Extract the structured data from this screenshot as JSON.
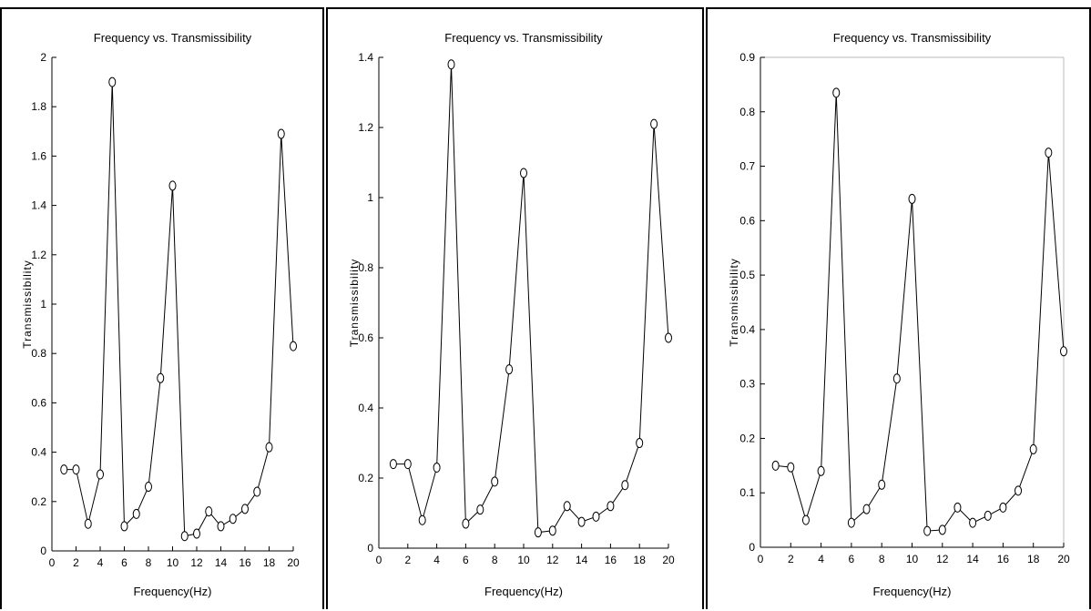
{
  "chart_data": [
    {
      "type": "line",
      "title": "Frequency vs. Transmissibility",
      "xlabel": "Frequency(Hz)",
      "ylabel": "Transmissibility",
      "xlim": [
        0,
        20
      ],
      "ylim": [
        0,
        2
      ],
      "xticks": [
        "0",
        "2",
        "4",
        "6",
        "8",
        "10",
        "12",
        "14",
        "16",
        "18",
        "20"
      ],
      "yticks": [
        "0",
        "0.2",
        "0.4",
        "0.6",
        "0.8",
        "1",
        "1.2",
        "1.4",
        "1.6",
        "1.8",
        "2"
      ],
      "x": [
        1,
        2,
        3,
        4,
        5,
        6,
        7,
        8,
        9,
        10,
        11,
        12,
        13,
        14,
        15,
        16,
        17,
        18,
        19,
        20
      ],
      "series": [
        {
          "values": [
            0.33,
            0.33,
            0.11,
            0.31,
            1.9,
            0.1,
            0.15,
            0.26,
            0.7,
            1.48,
            0.06,
            0.07,
            0.16,
            0.1,
            0.13,
            0.17,
            0.24,
            0.42,
            1.69,
            0.83
          ]
        }
      ],
      "marker": "circle",
      "grid": false
    },
    {
      "type": "line",
      "title": "Frequency vs. Transmissibility",
      "xlabel": "Frequency(Hz)",
      "ylabel": "Transmissibility",
      "xlim": [
        0,
        20
      ],
      "ylim": [
        0,
        1.4
      ],
      "xticks": [
        "0",
        "2",
        "4",
        "6",
        "8",
        "10",
        "12",
        "14",
        "16",
        "18",
        "20"
      ],
      "yticks": [
        "0",
        "0.2",
        "0.4",
        "0.6",
        "0.8",
        "1",
        "1.2",
        "1.4"
      ],
      "x": [
        1,
        2,
        3,
        4,
        5,
        6,
        7,
        8,
        9,
        10,
        11,
        12,
        13,
        14,
        15,
        16,
        17,
        18,
        19,
        20
      ],
      "series": [
        {
          "values": [
            0.24,
            0.24,
            0.08,
            0.23,
            1.38,
            0.07,
            0.11,
            0.19,
            0.51,
            1.07,
            0.045,
            0.05,
            0.12,
            0.075,
            0.09,
            0.12,
            0.18,
            0.3,
            1.21,
            0.6
          ]
        }
      ],
      "marker": "circle",
      "grid": false
    },
    {
      "type": "line",
      "title": "Frequency vs. Transmissibility",
      "xlabel": "Frequency(Hz)",
      "ylabel": "Transmissibility",
      "xlim": [
        0,
        20
      ],
      "ylim": [
        0,
        0.9
      ],
      "xticks": [
        "0",
        "2",
        "4",
        "6",
        "8",
        "10",
        "12",
        "14",
        "16",
        "18",
        "20"
      ],
      "yticks": [
        "0",
        "0.1",
        "0.2",
        "0.3",
        "0.4",
        "0.5",
        "0.6",
        "0.7",
        "0.8",
        "0.9"
      ],
      "x": [
        1,
        2,
        3,
        4,
        5,
        6,
        7,
        8,
        9,
        10,
        11,
        12,
        13,
        14,
        15,
        16,
        17,
        18,
        19,
        20
      ],
      "series": [
        {
          "values": [
            0.15,
            0.147,
            0.05,
            0.14,
            0.835,
            0.045,
            0.07,
            0.115,
            0.31,
            0.64,
            0.03,
            0.032,
            0.073,
            0.045,
            0.058,
            0.073,
            0.104,
            0.18,
            0.725,
            0.36
          ]
        }
      ],
      "marker": "circle",
      "grid": false
    }
  ]
}
